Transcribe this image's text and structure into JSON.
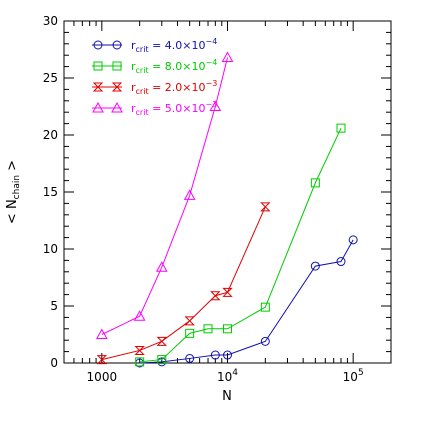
{
  "chart_data": {
    "type": "line",
    "xscale": "log",
    "xlim": [
      500,
      200000
    ],
    "ylim": [
      0,
      30
    ],
    "xlabel": "N",
    "ylabel": "< N",
    "ylabel_sub": "chain",
    "ylabel_close": " >",
    "xticks": [
      {
        "value": 1000,
        "base": "1000",
        "exp": ""
      },
      {
        "value": 10000,
        "base": "10",
        "exp": "4"
      },
      {
        "value": 100000,
        "base": "10",
        "exp": "5"
      }
    ],
    "yticks": [
      0,
      5,
      10,
      15,
      20,
      25,
      30
    ],
    "grid": false,
    "legend_position": "top-left",
    "series": [
      {
        "label_main": "r",
        "label_sub": "crit",
        "label_value": " = 4.0×10",
        "label_exp": "−4",
        "color": "#1010b0",
        "marker": "circle",
        "points": [
          [
            2000,
            0.0
          ],
          [
            3000,
            0.1
          ],
          [
            5000,
            0.4
          ],
          [
            8000,
            0.7
          ],
          [
            10000,
            0.7
          ],
          [
            20000,
            1.9
          ],
          [
            50000,
            8.5
          ],
          [
            80000,
            8.9
          ],
          [
            100000,
            10.8
          ]
        ]
      },
      {
        "label_main": "r",
        "label_sub": "crit",
        "label_value": " = 8.0×10",
        "label_exp": "−4",
        "color": "#00cc00",
        "marker": "square",
        "points": [
          [
            2000,
            0.1
          ],
          [
            3000,
            0.3
          ],
          [
            5000,
            2.6
          ],
          [
            7000,
            3.0
          ],
          [
            10000,
            3.0
          ],
          [
            20000,
            4.9
          ],
          [
            50000,
            15.8
          ],
          [
            80000,
            20.6
          ]
        ]
      },
      {
        "label_main": "r",
        "label_sub": "crit",
        "label_value": " = 2.0×10",
        "label_exp": "−3",
        "color": "#e00000",
        "marker": "bowtie",
        "points": [
          [
            1000,
            0.3
          ],
          [
            2000,
            1.1
          ],
          [
            3000,
            1.9
          ],
          [
            5000,
            3.7
          ],
          [
            8000,
            5.9
          ],
          [
            10000,
            6.2
          ],
          [
            20000,
            13.7
          ]
        ]
      },
      {
        "label_main": "r",
        "label_sub": "crit",
        "label_value": " = 5.0×10",
        "label_exp": "−3",
        "color": "#ff00ff",
        "marker": "triangle",
        "points": [
          [
            1000,
            2.5
          ],
          [
            2000,
            4.1
          ],
          [
            3000,
            8.4
          ],
          [
            5000,
            14.7
          ],
          [
            8000,
            22.5
          ],
          [
            10000,
            26.8
          ]
        ]
      }
    ]
  }
}
